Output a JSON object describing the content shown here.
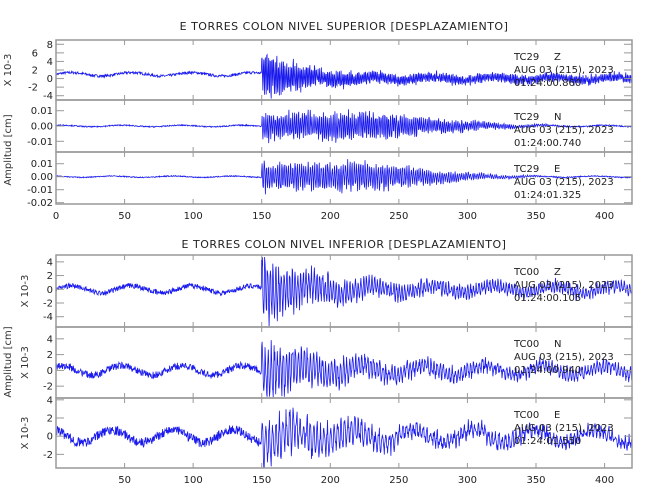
{
  "chart_data": [
    {
      "type": "line",
      "title": "E TORRES COLON NIVEL SUPERIOR [DESPLAZAMIENTO]",
      "ylabel": "Amplitud [cm]",
      "xlim": [
        0,
        420
      ],
      "x_ticks": [
        "0",
        "50",
        "100",
        "150",
        "200",
        "250",
        "300",
        "350",
        "400"
      ],
      "x_tick_values": [
        0,
        50,
        100,
        150,
        200,
        250,
        300,
        350,
        400
      ],
      "panels": [
        {
          "station": "TC29",
          "component": "Z",
          "date": "AUG 03 (215), 2023",
          "time": "01:24:00.860",
          "scale_label": "X 10-3",
          "ylim": [
            -5,
            9
          ],
          "y_ticks": [
            "8",
            "6",
            "4",
            "2",
            "0",
            "-2",
            "-4"
          ],
          "y_tick_values": [
            8,
            6,
            4,
            2,
            0,
            -2,
            -4
          ],
          "noise": 0.4,
          "onset": 150,
          "peak": 6,
          "decay": 30,
          "offset": 1,
          "period": 1.2
        },
        {
          "station": "TC29",
          "component": "N",
          "date": "AUG 03 (215), 2023",
          "time": "01:24:00.740",
          "scale_label": "",
          "ylim": [
            -0.017,
            0.017
          ],
          "y_ticks": [
            "0.01",
            "0.00",
            "-0.01"
          ],
          "y_tick_values": [
            0.01,
            0,
            -0.01
          ],
          "noise": 0.0005,
          "onset": 150,
          "peak": 0.01,
          "decay": 90,
          "offset": 0,
          "period": 1.4
        },
        {
          "station": "TC29",
          "component": "E",
          "date": "AUG 03 (215), 2023",
          "time": "01:24:01.325",
          "scale_label": "",
          "ylim": [
            -0.021,
            0.019
          ],
          "y_ticks": [
            "0.01",
            "0.00",
            "-0.01",
            "-0.02"
          ],
          "y_tick_values": [
            0.01,
            0,
            -0.01,
            -0.02
          ],
          "noise": 0.0005,
          "onset": 150,
          "peak": 0.012,
          "decay": 80,
          "offset": 0,
          "period": 1.6
        }
      ]
    },
    {
      "type": "line",
      "title": "E TORRES COLON NIVEL INFERIOR [DESPLAZAMIENTO]",
      "ylabel": "Amplitud [cm]",
      "xlim": [
        0,
        420
      ],
      "x_ticks": [
        "50",
        "100",
        "150",
        "200",
        "250",
        "300",
        "350",
        "400"
      ],
      "x_tick_values": [
        50,
        100,
        150,
        200,
        250,
        300,
        350,
        400
      ],
      "panels": [
        {
          "station": "TC00",
          "component": "Z",
          "date": "AUG 03 (215), 2023",
          "time": "01:24:00.105",
          "scale_label": "X 10-3",
          "ylim": [
            -5.5,
            5
          ],
          "y_ticks": [
            "4",
            "2",
            "0",
            "-2",
            "-4"
          ],
          "y_tick_values": [
            4,
            2,
            0,
            -2,
            -4
          ],
          "noise": 0.5,
          "onset": 150,
          "peak": 4.5,
          "decay": 40,
          "offset": 0,
          "period": 2
        },
        {
          "station": "TC00",
          "component": "N",
          "date": "AUG 03 (215), 2023",
          "time": "01:24:00.940",
          "scale_label": "X 10-3",
          "ylim": [
            -3.5,
            5.5
          ],
          "y_ticks": [
            "4",
            "2",
            "0",
            "-2"
          ],
          "y_tick_values": [
            4,
            2,
            0,
            -2
          ],
          "noise": 0.6,
          "onset": 150,
          "peak": 3.5,
          "decay": 50,
          "offset": 0,
          "period": 2.2
        },
        {
          "station": "TC00",
          "component": "E",
          "date": "AUG 03 (215), 2023",
          "time": "01:24:01.550",
          "scale_label": "X 10-3",
          "ylim": [
            -3.5,
            4.2
          ],
          "y_ticks": [
            "4",
            "2",
            "0",
            "-2"
          ],
          "y_tick_values": [
            4,
            2,
            0,
            -2
          ],
          "noise": 0.7,
          "onset": 150,
          "peak": 2.5,
          "decay": 70,
          "offset": 0,
          "period": 2.5
        }
      ]
    }
  ]
}
